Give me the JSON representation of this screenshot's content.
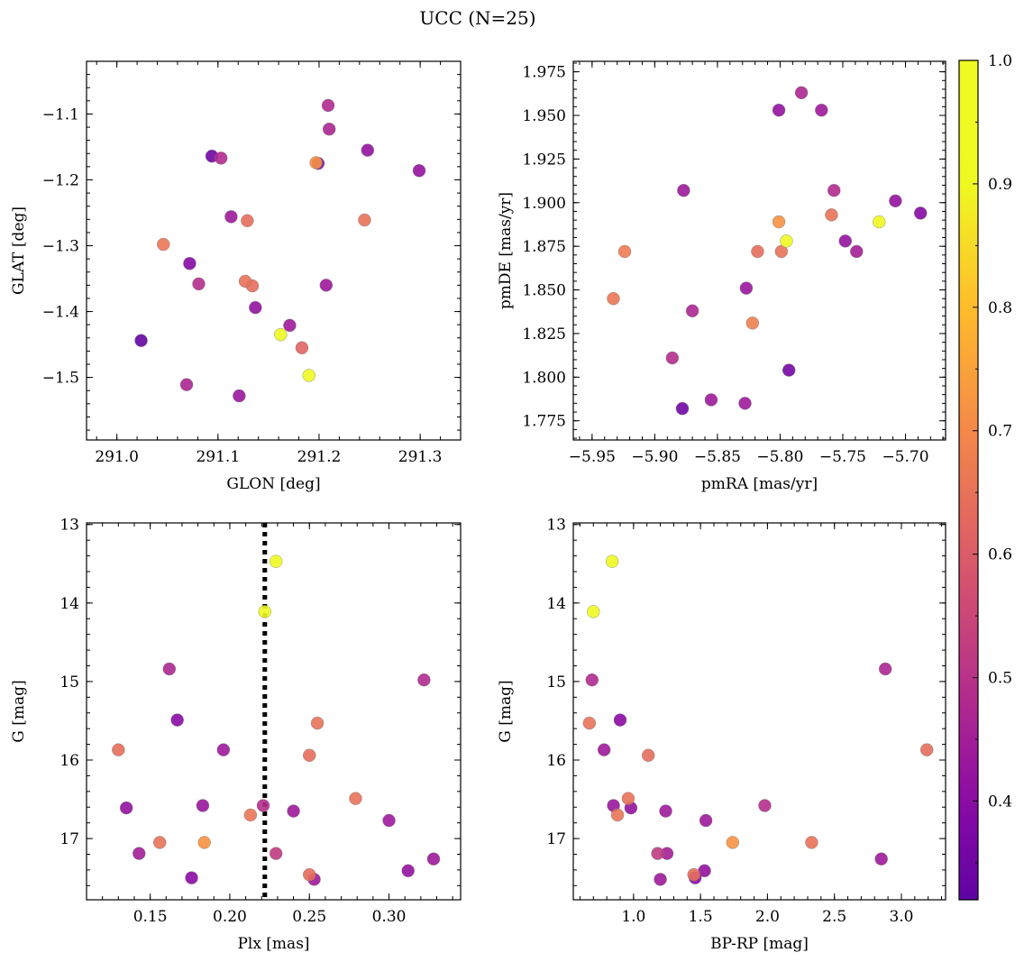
{
  "figure": {
    "title": "UCC (N=25)"
  },
  "colorbar": {
    "range": [
      0.32,
      1.0
    ],
    "ticks": [
      0.4,
      0.5,
      0.6,
      0.7,
      0.8,
      0.9,
      1.0
    ],
    "tick_labels": [
      "0.4",
      "0.5",
      "0.6",
      "0.7",
      "0.8",
      "0.9",
      "1.0"
    ],
    "colormap": "plasma"
  },
  "chart_data": [
    {
      "type": "scatter",
      "xlabel": "GLON [deg]",
      "ylabel": "GLAT [deg]",
      "xlim": [
        290.97,
        291.34
      ],
      "ylim": [
        -1.595,
        -1.02
      ],
      "y_inverted": false,
      "xticks": [
        291.0,
        291.1,
        291.2,
        291.3
      ],
      "xtick_labels": [
        "291.0",
        "291.1",
        "291.2",
        "291.3"
      ],
      "yticks": [
        -1.1,
        -1.2,
        -1.3,
        -1.4,
        -1.5
      ],
      "ytick_labels": [
        "−1.1",
        "−1.2",
        "−1.3",
        "−1.4",
        "−1.5"
      ],
      "points": [
        {
          "x": 291.209,
          "y": -1.087,
          "c": 0.48
        },
        {
          "x": 291.21,
          "y": -1.123,
          "c": 0.47
        },
        {
          "x": 291.248,
          "y": -1.155,
          "c": 0.42
        },
        {
          "x": 291.094,
          "y": -1.164,
          "c": 0.35
        },
        {
          "x": 291.103,
          "y": -1.167,
          "c": 0.48
        },
        {
          "x": 291.197,
          "y": -1.174,
          "c": 0.72
        },
        {
          "x": 291.199,
          "y": -1.175,
          "c": 0.36
        },
        {
          "x": 291.299,
          "y": -1.186,
          "c": 0.42
        },
        {
          "x": 291.113,
          "y": -1.256,
          "c": 0.44
        },
        {
          "x": 291.129,
          "y": -1.262,
          "c": 0.64
        },
        {
          "x": 291.245,
          "y": -1.261,
          "c": 0.65
        },
        {
          "x": 291.046,
          "y": -1.298,
          "c": 0.66
        },
        {
          "x": 291.072,
          "y": -1.327,
          "c": 0.39
        },
        {
          "x": 291.127,
          "y": -1.354,
          "c": 0.65
        },
        {
          "x": 291.081,
          "y": -1.358,
          "c": 0.49
        },
        {
          "x": 291.134,
          "y": -1.361,
          "c": 0.64
        },
        {
          "x": 291.207,
          "y": -1.36,
          "c": 0.44
        },
        {
          "x": 291.137,
          "y": -1.394,
          "c": 0.42
        },
        {
          "x": 291.171,
          "y": -1.421,
          "c": 0.44
        },
        {
          "x": 291.162,
          "y": -1.435,
          "c": 0.98
        },
        {
          "x": 291.024,
          "y": -1.444,
          "c": 0.33
        },
        {
          "x": 291.183,
          "y": -1.455,
          "c": 0.62
        },
        {
          "x": 291.19,
          "y": -1.497,
          "c": 0.98
        },
        {
          "x": 291.069,
          "y": -1.511,
          "c": 0.47
        },
        {
          "x": 291.121,
          "y": -1.528,
          "c": 0.43
        }
      ]
    },
    {
      "type": "scatter",
      "xlabel": "pmRA [mas/yr]",
      "ylabel": "pmDE [mas/yr]",
      "xlim": [
        -5.965,
        -5.668
      ],
      "ylim": [
        1.764,
        1.981
      ],
      "y_inverted": false,
      "xticks": [
        -5.95,
        -5.9,
        -5.85,
        -5.8,
        -5.75,
        -5.7
      ],
      "xtick_labels": [
        "−5.95",
        "−5.90",
        "−5.85",
        "−5.80",
        "−5.75",
        "−5.70"
      ],
      "yticks": [
        1.775,
        1.8,
        1.825,
        1.85,
        1.875,
        1.9,
        1.925,
        1.95,
        1.975
      ],
      "ytick_labels": [
        "1.775",
        "1.800",
        "1.825",
        "1.850",
        "1.875",
        "1.900",
        "1.925",
        "1.950",
        "1.975"
      ],
      "points": [
        {
          "x": -5.783,
          "y": 1.963,
          "c": 0.47
        },
        {
          "x": -5.801,
          "y": 1.953,
          "c": 0.42
        },
        {
          "x": -5.767,
          "y": 1.953,
          "c": 0.44
        },
        {
          "x": -5.877,
          "y": 1.907,
          "c": 0.44
        },
        {
          "x": -5.757,
          "y": 1.907,
          "c": 0.48
        },
        {
          "x": -5.708,
          "y": 1.901,
          "c": 0.42
        },
        {
          "x": -5.688,
          "y": 1.894,
          "c": 0.39
        },
        {
          "x": -5.759,
          "y": 1.893,
          "c": 0.65
        },
        {
          "x": -5.801,
          "y": 1.889,
          "c": 0.72
        },
        {
          "x": -5.721,
          "y": 1.889,
          "c": 0.98
        },
        {
          "x": -5.795,
          "y": 1.878,
          "c": 0.98
        },
        {
          "x": -5.748,
          "y": 1.878,
          "c": 0.42
        },
        {
          "x": -5.924,
          "y": 1.872,
          "c": 0.67
        },
        {
          "x": -5.818,
          "y": 1.872,
          "c": 0.64
        },
        {
          "x": -5.799,
          "y": 1.872,
          "c": 0.65
        },
        {
          "x": -5.739,
          "y": 1.872,
          "c": 0.45
        },
        {
          "x": -5.827,
          "y": 1.851,
          "c": 0.43
        },
        {
          "x": -5.933,
          "y": 1.845,
          "c": 0.66
        },
        {
          "x": -5.87,
          "y": 1.838,
          "c": 0.47
        },
        {
          "x": -5.822,
          "y": 1.831,
          "c": 0.68
        },
        {
          "x": -5.886,
          "y": 1.811,
          "c": 0.49
        },
        {
          "x": -5.793,
          "y": 1.804,
          "c": 0.36
        },
        {
          "x": -5.855,
          "y": 1.787,
          "c": 0.44
        },
        {
          "x": -5.828,
          "y": 1.785,
          "c": 0.44
        },
        {
          "x": -5.878,
          "y": 1.782,
          "c": 0.35
        }
      ]
    },
    {
      "type": "scatter",
      "xlabel": "Plx [mas]",
      "ylabel": "G [mag]",
      "xlim": [
        0.11,
        0.345
      ],
      "ylim": [
        17.78,
        12.98
      ],
      "y_inverted": true,
      "xticks": [
        0.15,
        0.2,
        0.25,
        0.3
      ],
      "xtick_labels": [
        "0.15",
        "0.20",
        "0.25",
        "0.30"
      ],
      "yticks": [
        13,
        14,
        15,
        16,
        17
      ],
      "ytick_labels": [
        "13",
        "14",
        "15",
        "16",
        "17"
      ],
      "vline": 0.222,
      "points": [
        {
          "x": 0.229,
          "y": 13.47,
          "c": 0.98
        },
        {
          "x": 0.222,
          "y": 14.11,
          "c": 0.98
        },
        {
          "x": 0.162,
          "y": 14.84,
          "c": 0.47
        },
        {
          "x": 0.322,
          "y": 14.98,
          "c": 0.48
        },
        {
          "x": 0.167,
          "y": 15.49,
          "c": 0.4
        },
        {
          "x": 0.255,
          "y": 15.53,
          "c": 0.65
        },
        {
          "x": 0.13,
          "y": 15.87,
          "c": 0.64
        },
        {
          "x": 0.196,
          "y": 15.87,
          "c": 0.44
        },
        {
          "x": 0.25,
          "y": 15.94,
          "c": 0.64
        },
        {
          "x": 0.279,
          "y": 16.49,
          "c": 0.65
        },
        {
          "x": 0.183,
          "y": 16.58,
          "c": 0.43
        },
        {
          "x": 0.221,
          "y": 16.58,
          "c": 0.49
        },
        {
          "x": 0.135,
          "y": 16.61,
          "c": 0.42
        },
        {
          "x": 0.24,
          "y": 16.65,
          "c": 0.44
        },
        {
          "x": 0.213,
          "y": 16.7,
          "c": 0.66
        },
        {
          "x": 0.3,
          "y": 16.77,
          "c": 0.44
        },
        {
          "x": 0.156,
          "y": 17.05,
          "c": 0.65
        },
        {
          "x": 0.184,
          "y": 17.05,
          "c": 0.72
        },
        {
          "x": 0.143,
          "y": 17.19,
          "c": 0.45
        },
        {
          "x": 0.229,
          "y": 17.19,
          "c": 0.52
        },
        {
          "x": 0.328,
          "y": 17.26,
          "c": 0.44
        },
        {
          "x": 0.312,
          "y": 17.41,
          "c": 0.42
        },
        {
          "x": 0.25,
          "y": 17.46,
          "c": 0.64
        },
        {
          "x": 0.176,
          "y": 17.5,
          "c": 0.4
        },
        {
          "x": 0.253,
          "y": 17.52,
          "c": 0.44
        }
      ]
    },
    {
      "type": "scatter",
      "xlabel": "BP-RP [mag]",
      "ylabel": "G [mag]",
      "xlim": [
        0.55,
        3.33
      ],
      "ylim": [
        17.78,
        12.98
      ],
      "y_inverted": true,
      "xticks": [
        1.0,
        1.5,
        2.0,
        2.5,
        3.0
      ],
      "xtick_labels": [
        "1.0",
        "1.5",
        "2.0",
        "2.5",
        "3.0"
      ],
      "yticks": [
        13,
        14,
        15,
        16,
        17
      ],
      "ytick_labels": [
        "13",
        "14",
        "15",
        "16",
        "17"
      ],
      "points": [
        {
          "x": 0.84,
          "y": 13.47,
          "c": 0.98
        },
        {
          "x": 0.7,
          "y": 14.11,
          "c": 0.98
        },
        {
          "x": 2.88,
          "y": 14.84,
          "c": 0.47
        },
        {
          "x": 0.69,
          "y": 14.98,
          "c": 0.48
        },
        {
          "x": 0.9,
          "y": 15.49,
          "c": 0.4
        },
        {
          "x": 0.67,
          "y": 15.53,
          "c": 0.65
        },
        {
          "x": 3.19,
          "y": 15.87,
          "c": 0.64
        },
        {
          "x": 0.78,
          "y": 15.87,
          "c": 0.44
        },
        {
          "x": 1.11,
          "y": 15.94,
          "c": 0.64
        },
        {
          "x": 0.96,
          "y": 16.49,
          "c": 0.65
        },
        {
          "x": 0.85,
          "y": 16.58,
          "c": 0.43
        },
        {
          "x": 1.98,
          "y": 16.58,
          "c": 0.49
        },
        {
          "x": 0.98,
          "y": 16.61,
          "c": 0.42
        },
        {
          "x": 1.24,
          "y": 16.65,
          "c": 0.44
        },
        {
          "x": 0.88,
          "y": 16.7,
          "c": 0.66
        },
        {
          "x": 1.54,
          "y": 16.77,
          "c": 0.44
        },
        {
          "x": 2.33,
          "y": 17.05,
          "c": 0.65
        },
        {
          "x": 1.74,
          "y": 17.05,
          "c": 0.72
        },
        {
          "x": 1.25,
          "y": 17.19,
          "c": 0.45
        },
        {
          "x": 1.18,
          "y": 17.19,
          "c": 0.52
        },
        {
          "x": 2.85,
          "y": 17.26,
          "c": 0.44
        },
        {
          "x": 1.53,
          "y": 17.41,
          "c": 0.42
        },
        {
          "x": 1.45,
          "y": 17.46,
          "c": 0.64
        },
        {
          "x": 1.46,
          "y": 17.5,
          "c": 0.4
        },
        {
          "x": 1.2,
          "y": 17.52,
          "c": 0.44
        }
      ]
    }
  ]
}
